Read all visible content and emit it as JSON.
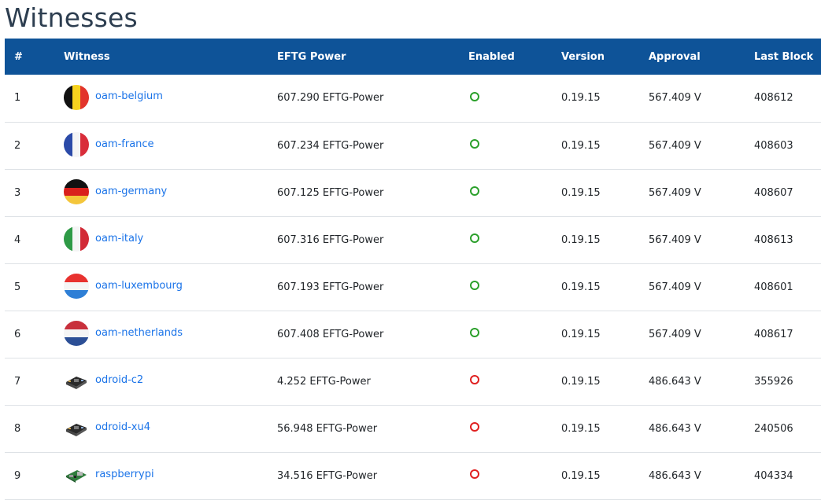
{
  "page_title": "Witnesses",
  "columns": {
    "rank": "#",
    "witness": "Witness",
    "power": "EFTG Power",
    "enabled": "Enabled",
    "version": "Version",
    "approval": "Approval",
    "last_block": "Last Block"
  },
  "status_colors": {
    "enabled": "#2ba02b",
    "disabled": "#e02020"
  },
  "header_color": "#0e5398",
  "rows": [
    {
      "rank": "1",
      "name": "oam-belgium",
      "avatar": "flag-belgium-icon",
      "power": "607.290 EFTG-Power",
      "enabled": true,
      "version": "0.19.15",
      "approval": "567.409 V",
      "last_block": "408612"
    },
    {
      "rank": "2",
      "name": "oam-france",
      "avatar": "flag-france-icon",
      "power": "607.234 EFTG-Power",
      "enabled": true,
      "version": "0.19.15",
      "approval": "567.409 V",
      "last_block": "408603"
    },
    {
      "rank": "3",
      "name": "oam-germany",
      "avatar": "flag-germany-icon",
      "power": "607.125 EFTG-Power",
      "enabled": true,
      "version": "0.19.15",
      "approval": "567.409 V",
      "last_block": "408607"
    },
    {
      "rank": "4",
      "name": "oam-italy",
      "avatar": "flag-italy-icon",
      "power": "607.316 EFTG-Power",
      "enabled": true,
      "version": "0.19.15",
      "approval": "567.409 V",
      "last_block": "408613"
    },
    {
      "rank": "5",
      "name": "oam-luxembourg",
      "avatar": "flag-luxembourg-icon",
      "power": "607.193 EFTG-Power",
      "enabled": true,
      "version": "0.19.15",
      "approval": "567.409 V",
      "last_block": "408601"
    },
    {
      "rank": "6",
      "name": "oam-netherlands",
      "avatar": "flag-netherlands-icon",
      "power": "607.408 EFTG-Power",
      "enabled": true,
      "version": "0.19.15",
      "approval": "567.409 V",
      "last_block": "408617"
    },
    {
      "rank": "7",
      "name": "odroid-c2",
      "avatar": "single-board-computer-icon",
      "power": "4.252 EFTG-Power",
      "enabled": false,
      "version": "0.19.15",
      "approval": "486.643 V",
      "last_block": "355926"
    },
    {
      "rank": "8",
      "name": "odroid-xu4",
      "avatar": "single-board-computer-icon",
      "power": "56.948 EFTG-Power",
      "enabled": false,
      "version": "0.19.15",
      "approval": "486.643 V",
      "last_block": "240506"
    },
    {
      "rank": "9",
      "name": "raspberrypi",
      "avatar": "raspberry-pi-board-icon",
      "power": "34.516 EFTG-Power",
      "enabled": false,
      "version": "0.19.15",
      "approval": "486.643 V",
      "last_block": "404334"
    }
  ]
}
